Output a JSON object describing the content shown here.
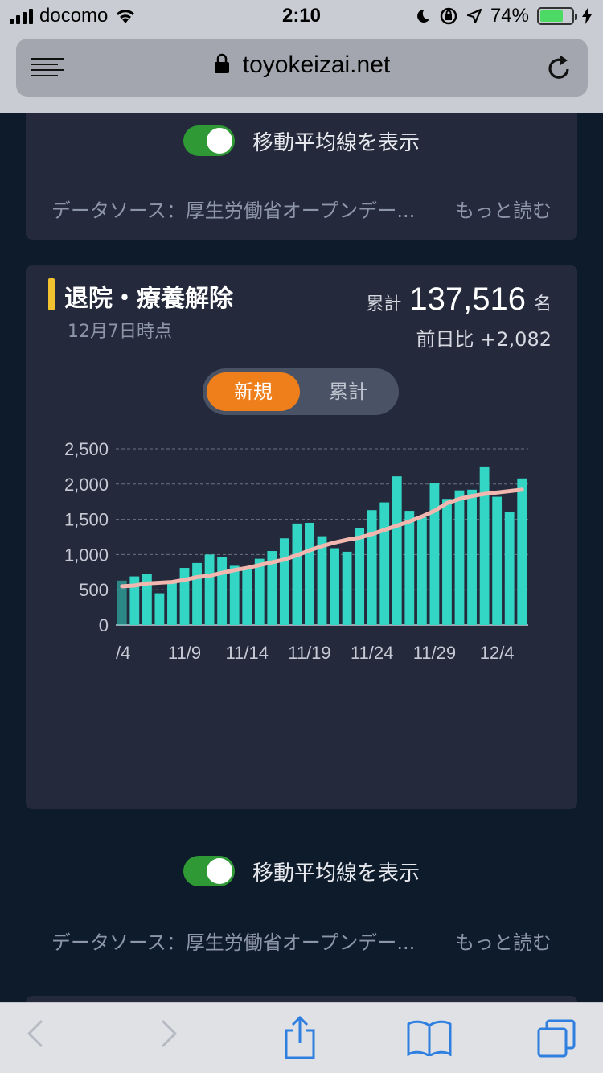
{
  "status": {
    "carrier": "docomo",
    "time": "2:10",
    "battery": "74%"
  },
  "browser": {
    "url": "toyokeizai.net"
  },
  "card_top": {
    "toggle_label": "移動平均線を表示",
    "source": "データソース：厚生労働省オープンデー...",
    "more": "もっと読む"
  },
  "card_main": {
    "title": "退院・療養解除",
    "as_of": "12月7日時点",
    "total_label": "累計",
    "total_value": "137,516",
    "total_unit": "名",
    "diff_text": "前日比 +2,082",
    "tab_new": "新規",
    "tab_cumulative": "累計",
    "toggle_label": "移動平均線を表示",
    "source": "データソース：厚生労働省オープンデー...",
    "more": "もっと読む"
  },
  "colors": {
    "bar": "#33d6c4",
    "moving_average": "#f2b8b0",
    "accent_orange": "#ef7f1a",
    "toggle_green": "#2f9a35",
    "title_marker": "#f2c230"
  },
  "chart_data": {
    "type": "bar",
    "title": "",
    "xlabel": "",
    "ylabel": "",
    "ylim": [
      0,
      2500
    ],
    "yticks": [
      "0",
      "500",
      "1,000",
      "1,500",
      "2,000",
      "2,500"
    ],
    "xtick_labels": [
      "/4",
      "11/9",
      "11/14",
      "11/19",
      "11/24",
      "11/29",
      "12/4"
    ],
    "grid": true,
    "series": [
      {
        "type": "bar",
        "values": [
          630,
          690,
          720,
          450,
          600,
          810,
          880,
          1000,
          960,
          840,
          820,
          940,
          1050,
          1230,
          1440,
          1450,
          1260,
          1090,
          1040,
          1370,
          1630,
          1740,
          2110,
          1620,
          1530,
          2010,
          1790,
          1910,
          1920,
          2250,
          1820,
          1600,
          2080
        ]
      },
      {
        "type": "line",
        "values": [
          550,
          560,
          590,
          600,
          610,
          640,
          680,
          700,
          740,
          780,
          810,
          850,
          890,
          930,
          990,
          1060,
          1120,
          1170,
          1210,
          1240,
          1290,
          1350,
          1410,
          1470,
          1540,
          1620,
          1730,
          1790,
          1830,
          1860,
          1880,
          1900,
          1920
        ]
      }
    ]
  }
}
